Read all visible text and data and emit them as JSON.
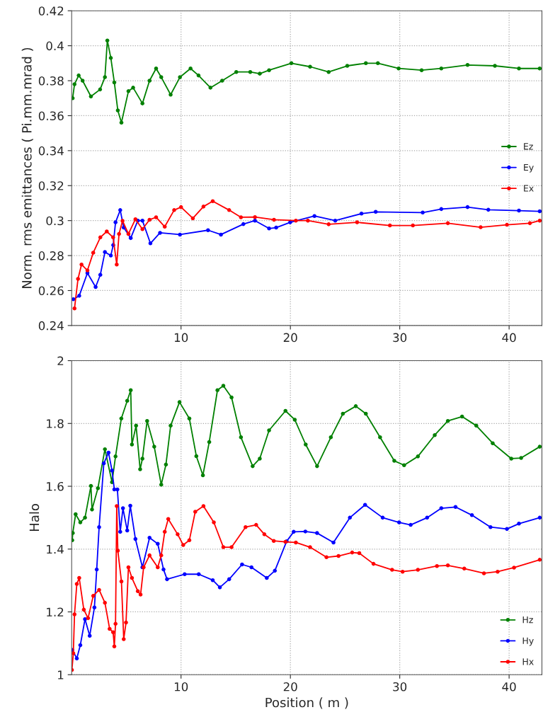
{
  "chart_data": [
    {
      "type": "line",
      "ylabel": "Norm. rms emittances ( Pi.mm.mrad )",
      "xlim": [
        0,
        43
      ],
      "xticks": [
        10,
        20,
        30,
        40
      ],
      "ylim": [
        0.24,
        0.42
      ],
      "yticks": [
        0.24,
        0.26,
        0.28,
        0.3,
        0.32,
        0.34,
        0.36,
        0.38,
        0.4,
        0.42
      ],
      "grid": true,
      "legend": "right",
      "marker": "circle",
      "line_style": "solid",
      "series": [
        {
          "name": "Ez",
          "color": "#008000",
          "x": [
            0.09,
            0.26,
            0.64,
            1.0,
            1.76,
            2.6,
            3.04,
            3.26,
            3.58,
            3.9,
            4.22,
            4.55,
            5.19,
            5.62,
            6.47,
            7.12,
            7.72,
            8.19,
            9.05,
            9.9,
            10.87,
            11.6,
            12.69,
            13.76,
            15.05,
            16.33,
            17.2,
            18.05,
            20.09,
            21.8,
            23.5,
            25.2,
            26.9,
            28.0,
            29.9,
            32.0,
            33.8,
            36.2,
            38.7,
            40.9,
            42.8
          ],
          "values": [
            0.37,
            0.378,
            0.383,
            0.38,
            0.371,
            0.375,
            0.382,
            0.403,
            0.393,
            0.379,
            0.363,
            0.356,
            0.374,
            0.376,
            0.367,
            0.38,
            0.387,
            0.382,
            0.372,
            0.382,
            0.387,
            0.383,
            0.376,
            0.38,
            0.385,
            0.385,
            0.384,
            0.386,
            0.39,
            0.388,
            0.385,
            0.3885,
            0.39,
            0.39,
            0.387,
            0.386,
            0.387,
            0.389,
            0.3885,
            0.387,
            0.387
          ]
        },
        {
          "name": "Ey",
          "color": "#0000ff",
          "x": [
            0.15,
            0.69,
            1.44,
            2.19,
            2.62,
            3.04,
            3.58,
            3.8,
            4.01,
            4.44,
            4.76,
            5.4,
            6.05,
            6.47,
            7.2,
            8.08,
            9.9,
            12.47,
            13.65,
            15.7,
            16.76,
            18.05,
            18.7,
            19.98,
            22.2,
            24.1,
            26.5,
            27.8,
            32.1,
            33.8,
            36.2,
            38.1,
            40.9,
            42.8
          ],
          "values": [
            0.255,
            0.257,
            0.27,
            0.262,
            0.269,
            0.282,
            0.28,
            0.286,
            0.299,
            0.306,
            0.296,
            0.29,
            0.3,
            0.3,
            0.287,
            0.293,
            0.292,
            0.2945,
            0.292,
            0.298,
            0.3,
            0.2955,
            0.296,
            0.299,
            0.3026,
            0.3,
            0.304,
            0.305,
            0.3046,
            0.3066,
            0.3077,
            0.3062,
            0.3057,
            0.3053
          ]
        },
        {
          "name": "Ex",
          "color": "#ff0000",
          "x": [
            0.26,
            0.58,
            0.9,
            1.44,
            1.97,
            2.62,
            3.21,
            3.79,
            4.12,
            4.33,
            4.65,
            5.19,
            5.83,
            6.47,
            7.12,
            7.72,
            8.51,
            9.37,
            10.0,
            11.08,
            12.05,
            12.9,
            14.4,
            15.48,
            16.76,
            18.5,
            20.5,
            21.6,
            23.5,
            26.1,
            29.1,
            31.2,
            34.4,
            37.4,
            39.8,
            41.9,
            42.8
          ],
          "values": [
            0.2498,
            0.2667,
            0.2749,
            0.2715,
            0.2816,
            0.2904,
            0.2938,
            0.2904,
            0.2749,
            0.2924,
            0.2999,
            0.2924,
            0.3008,
            0.2951,
            0.3005,
            0.3019,
            0.2965,
            0.306,
            0.3077,
            0.3013,
            0.308,
            0.3111,
            0.306,
            0.3019,
            0.302,
            0.3005,
            0.3,
            0.3,
            0.2979,
            0.299,
            0.2972,
            0.2972,
            0.2985,
            0.2962,
            0.2976,
            0.2985,
            0.3
          ]
        }
      ]
    },
    {
      "type": "line",
      "xlabel": "Position ( m )",
      "ylabel": "Halo",
      "xlim": [
        0,
        43
      ],
      "xticks": [
        10,
        20,
        30,
        40
      ],
      "ylim": [
        1,
        2
      ],
      "yticks": [
        1,
        1.2,
        1.4,
        1.6,
        1.8,
        2
      ],
      "grid": true,
      "legend": "bottom right",
      "marker": "circle",
      "line_style": "solid",
      "series": [
        {
          "name": "Hz",
          "color": "#008000",
          "x": [
            0.05,
            0.1,
            0.36,
            0.79,
            1.22,
            1.76,
            1.86,
            2.4,
            3.04,
            3.69,
            4.01,
            4.54,
            5.08,
            5.4,
            5.51,
            5.89,
            6.26,
            6.47,
            6.9,
            7.55,
            8.19,
            8.62,
            9.05,
            9.86,
            10.76,
            11.4,
            12.0,
            12.58,
            13.33,
            13.87,
            14.62,
            15.48,
            16.55,
            17.2,
            18.05,
            19.55,
            20.4,
            21.4,
            22.44,
            23.7,
            24.8,
            25.98,
            26.9,
            28.2,
            29.5,
            30.4,
            31.66,
            33.2,
            34.4,
            35.7,
            37.0,
            38.5,
            40.2,
            41.1,
            42.8
          ],
          "values": [
            1.428,
            1.451,
            1.511,
            1.485,
            1.5,
            1.601,
            1.526,
            1.594,
            1.718,
            1.613,
            1.695,
            1.816,
            1.872,
            1.906,
            1.733,
            1.793,
            1.654,
            1.688,
            1.808,
            1.726,
            1.605,
            1.669,
            1.793,
            1.868,
            1.816,
            1.696,
            1.635,
            1.741,
            1.906,
            1.92,
            1.883,
            1.756,
            1.664,
            1.688,
            1.778,
            1.84,
            1.812,
            1.733,
            1.664,
            1.756,
            1.831,
            1.855,
            1.831,
            1.756,
            1.681,
            1.667,
            1.695,
            1.763,
            1.808,
            1.822,
            1.793,
            1.737,
            1.688,
            1.69,
            1.726
          ]
        },
        {
          "name": "Hy",
          "color": "#0000ff",
          "x": [
            0.05,
            0.47,
            0.79,
            1.22,
            1.65,
            2.08,
            2.29,
            2.51,
            2.94,
            3.37,
            3.69,
            3.9,
            4.18,
            4.44,
            4.69,
            5.08,
            5.36,
            5.83,
            6.47,
            7.12,
            7.87,
            8.4,
            8.72,
            10.33,
            11.62,
            12.9,
            13.55,
            14.4,
            15.58,
            16.44,
            17.84,
            18.58,
            19.66,
            20.3,
            21.37,
            22.44,
            23.94,
            25.44,
            26.83,
            28.44,
            29.94,
            31.0,
            32.5,
            33.8,
            35.1,
            36.6,
            38.3,
            39.8,
            40.9,
            42.8
          ],
          "values": [
            1.079,
            1.052,
            1.094,
            1.177,
            1.124,
            1.214,
            1.335,
            1.47,
            1.673,
            1.707,
            1.65,
            1.59,
            1.59,
            1.455,
            1.53,
            1.459,
            1.538,
            1.432,
            1.342,
            1.436,
            1.417,
            1.335,
            1.304,
            1.32,
            1.32,
            1.301,
            1.278,
            1.304,
            1.351,
            1.342,
            1.308,
            1.331,
            1.425,
            1.455,
            1.456,
            1.451,
            1.421,
            1.5,
            1.541,
            1.5,
            1.485,
            1.477,
            1.5,
            1.53,
            1.534,
            1.508,
            1.47,
            1.464,
            1.481,
            1.5
          ]
        },
        {
          "name": "Hx",
          "color": "#ff0000",
          "x": [
            0.02,
            0.15,
            0.26,
            0.47,
            0.69,
            1.11,
            1.5,
            1.97,
            2.51,
            3.04,
            3.47,
            3.79,
            3.9,
            4.01,
            4.12,
            4.22,
            4.55,
            4.76,
            4.97,
            5.19,
            5.51,
            6.05,
            6.3,
            6.58,
            7.12,
            7.87,
            8.19,
            8.51,
            8.83,
            9.69,
            10.2,
            10.76,
            11.3,
            12.05,
            13.0,
            13.87,
            14.62,
            15.9,
            16.87,
            17.62,
            18.48,
            19.55,
            20.5,
            21.8,
            23.3,
            24.4,
            25.65,
            26.3,
            27.6,
            29.3,
            30.26,
            31.66,
            33.4,
            34.4,
            35.9,
            37.7,
            38.95,
            40.45,
            42.8
          ],
          "values": [
            1.015,
            1.068,
            1.192,
            1.289,
            1.308,
            1.207,
            1.18,
            1.251,
            1.27,
            1.229,
            1.146,
            1.135,
            1.09,
            1.162,
            1.537,
            1.395,
            1.297,
            1.113,
            1.166,
            1.342,
            1.308,
            1.266,
            1.255,
            1.342,
            1.38,
            1.342,
            1.38,
            1.455,
            1.496,
            1.447,
            1.413,
            1.428,
            1.519,
            1.537,
            1.485,
            1.406,
            1.406,
            1.47,
            1.477,
            1.447,
            1.426,
            1.423,
            1.421,
            1.406,
            1.374,
            1.378,
            1.389,
            1.387,
            1.353,
            1.334,
            1.328,
            1.334,
            1.346,
            1.348,
            1.338,
            1.323,
            1.328,
            1.341,
            1.366
          ]
        }
      ]
    }
  ]
}
